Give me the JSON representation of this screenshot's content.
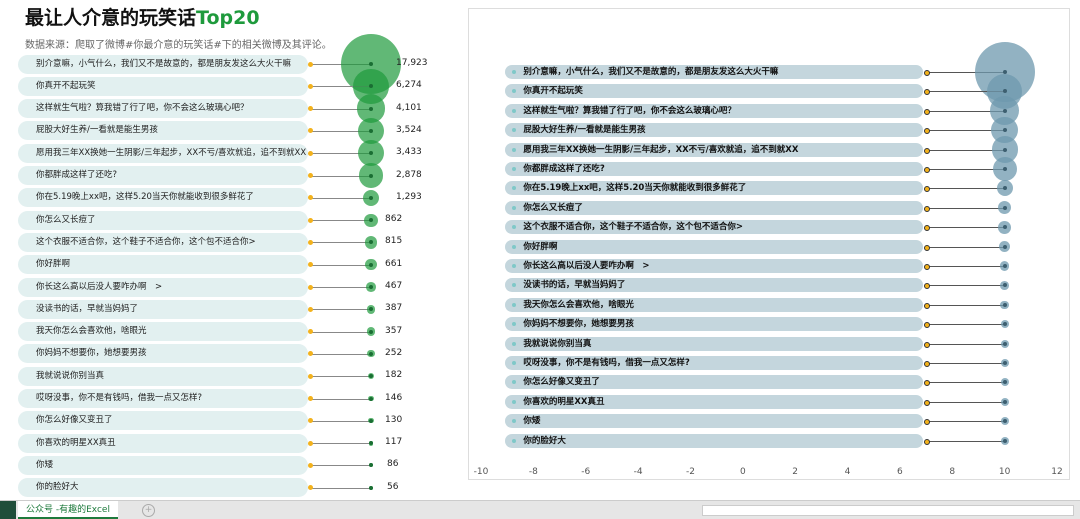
{
  "title": {
    "main": "最让人介意的玩笑话",
    "accent": "Top20"
  },
  "subtitle": "数据来源：爬取了微博#你最介意的玩笑话#下的相关微博及其评论。",
  "colors": {
    "green": "#1e9a3c",
    "yellow": "#f3b21c",
    "blue": "#6e98ad",
    "pill_left": "#e2f0f0",
    "pill_right": "#c4d6dd"
  },
  "items": [
    {
      "label": "别介意嘛，小气什么，我们又不是故意的，都是朋友发这么大火干嘛",
      "value": 17923,
      "value_text": "17,923"
    },
    {
      "label": "你真开不起玩笑",
      "value": 6274,
      "value_text": "6,274"
    },
    {
      "label": "这样就生气啦？算我错了行了吧，你不会这么玻璃心吧？",
      "value": 4101,
      "value_text": "4,101"
    },
    {
      "label": "屁股大好生养/一看就是能生男孩",
      "value": 3524,
      "value_text": "3,524"
    },
    {
      "label": "愿用我三年XX换她一生阴影/三年起步，XX不亏/喜欢就追，追不到就XX",
      "value": 3433,
      "value_text": "3,433"
    },
    {
      "label": "你都胖成这样了还吃?",
      "value": 2878,
      "value_text": "2,878"
    },
    {
      "label": "你在5.19晚上xx吧，这样5.20当天你就能收到很多鲜花了",
      "value": 1293,
      "value_text": "1,293"
    },
    {
      "label": "你怎么又长痘了",
      "value": 862,
      "value_text": "862"
    },
    {
      "label": "这个衣服不适合你，这个鞋子不适合你，这个包不适合你>",
      "value": 815,
      "value_text": "815"
    },
    {
      "label": "你好胖啊",
      "value": 661,
      "value_text": "661"
    },
    {
      "label": "你长这么高以后没人要咋办啊　>",
      "value": 467,
      "value_text": "467"
    },
    {
      "label": "没读书的话，早就当妈妈了",
      "value": 387,
      "value_text": "387"
    },
    {
      "label": "我天你怎么会喜欢他，啥眼光",
      "value": 357,
      "value_text": "357"
    },
    {
      "label": "你妈妈不想要你，她想要男孩",
      "value": 252,
      "value_text": "252"
    },
    {
      "label": "我就说说你别当真",
      "value": 182,
      "value_text": "182"
    },
    {
      "label": "哎呀没事，你不是有钱吗，借我一点又怎样?",
      "value": 146,
      "value_text": "146"
    },
    {
      "label": "你怎么好像又变丑了",
      "value": 130,
      "value_text": "130"
    },
    {
      "label": "你喜欢的明星XX真丑",
      "value": 117,
      "value_text": "117"
    },
    {
      "label": "你矮",
      "value": 86,
      "value_text": "86"
    },
    {
      "label": "你的脸好大",
      "value": 56,
      "value_text": "56"
    }
  ],
  "right_axis": {
    "ticks": [
      "-10",
      "-8",
      "-6",
      "-4",
      "-2",
      "0",
      "2",
      "4",
      "6",
      "8",
      "10",
      "12"
    ],
    "min": -10,
    "max": 12,
    "bar_start": -8,
    "dot_x": 7,
    "bubble_x": 10
  },
  "sheet_tab": "公众号 -有趣的Excel"
}
